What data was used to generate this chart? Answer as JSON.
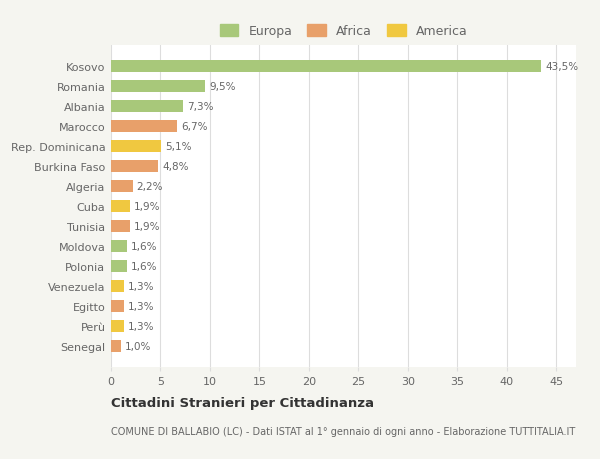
{
  "countries": [
    "Kosovo",
    "Romania",
    "Albania",
    "Marocco",
    "Rep. Dominicana",
    "Burkina Faso",
    "Algeria",
    "Cuba",
    "Tunisia",
    "Moldova",
    "Polonia",
    "Venezuela",
    "Egitto",
    "Perù",
    "Senegal"
  ],
  "values": [
    43.5,
    9.5,
    7.3,
    6.7,
    5.1,
    4.8,
    2.2,
    1.9,
    1.9,
    1.6,
    1.6,
    1.3,
    1.3,
    1.3,
    1.0
  ],
  "labels": [
    "43,5%",
    "9,5%",
    "7,3%",
    "6,7%",
    "5,1%",
    "4,8%",
    "2,2%",
    "1,9%",
    "1,9%",
    "1,6%",
    "1,6%",
    "1,3%",
    "1,3%",
    "1,3%",
    "1,0%"
  ],
  "continents": [
    "Europa",
    "Europa",
    "Europa",
    "Africa",
    "America",
    "Africa",
    "Africa",
    "America",
    "Africa",
    "Europa",
    "Europa",
    "America",
    "Africa",
    "America",
    "Africa"
  ],
  "colors": {
    "Europa": "#a8c87a",
    "Africa": "#e8a06a",
    "America": "#f0c840"
  },
  "title": "Cittadini Stranieri per Cittadinanza",
  "subtitle": "COMUNE DI BALLABIO (LC) - Dati ISTAT al 1° gennaio di ogni anno - Elaborazione TUTTITALIA.IT",
  "xlim": [
    0,
    47
  ],
  "xticks": [
    0,
    5,
    10,
    15,
    20,
    25,
    30,
    35,
    40,
    45
  ],
  "background_color": "#f5f5f0",
  "plot_background": "#ffffff",
  "grid_color": "#dddddd",
  "text_color": "#666666",
  "bar_height": 0.6
}
